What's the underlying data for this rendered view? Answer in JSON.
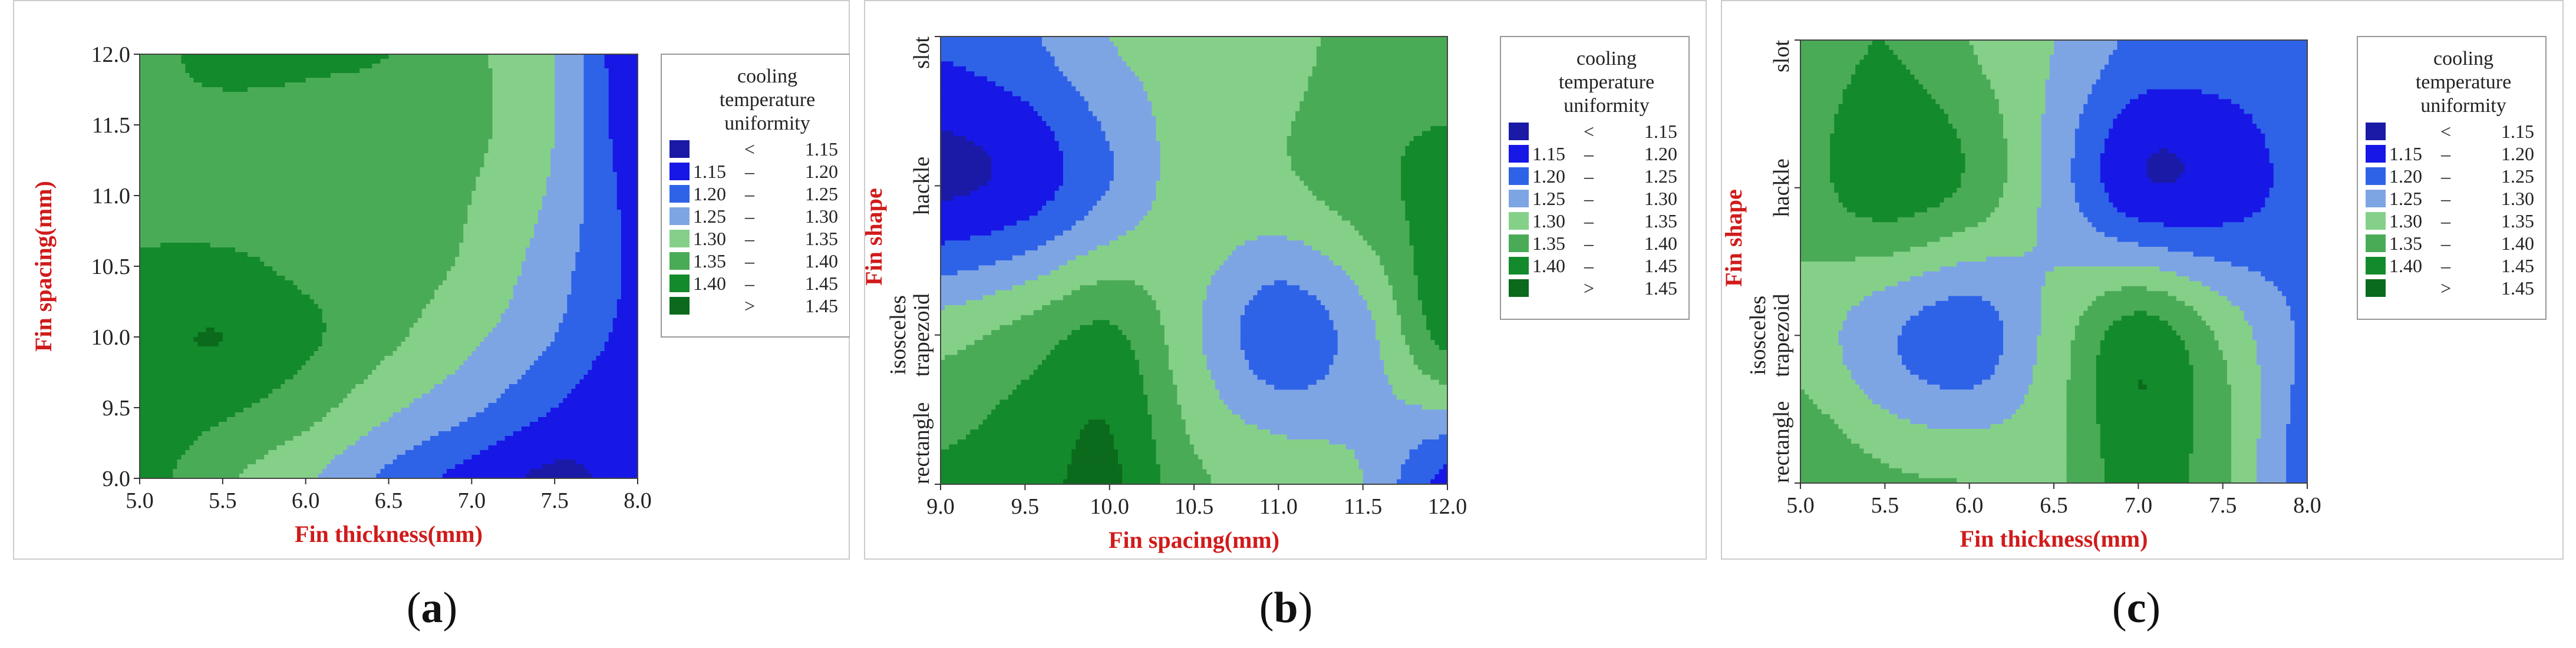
{
  "colors": {
    "levels": [
      "#1a1aa6",
      "#1717e6",
      "#2e63e8",
      "#7ea5e3",
      "#85d089",
      "#4aab57",
      "#138a2b",
      "#0b6a1c"
    ],
    "axis_label_color": "#d01b1b",
    "panel_border": "#cccccc"
  },
  "legend": {
    "title_lines": [
      "cooling",
      "temperature",
      "uniformity"
    ],
    "ranges": [
      {
        "lo": "<",
        "hi": "1.15"
      },
      {
        "lo": "1.15",
        "hi": "1.20"
      },
      {
        "lo": "1.20",
        "hi": "1.25"
      },
      {
        "lo": "1.25",
        "hi": "1.30"
      },
      {
        "lo": "1.30",
        "hi": "1.35"
      },
      {
        "lo": "1.35",
        "hi": "1.40"
      },
      {
        "lo": "1.40",
        "hi": "1.45"
      },
      {
        "lo": ">",
        "hi": "1.45"
      }
    ]
  },
  "chart_data": [
    {
      "type": "heatmap",
      "subtype": "filled-contour",
      "caption": "a",
      "xlabel": "Fin thickness(mm)",
      "ylabel": "Fin spacing(mm)",
      "xlim": [
        5.0,
        8.0
      ],
      "ylim": [
        9.0,
        12.0
      ],
      "x_ticks": [
        "5.0",
        "5.5",
        "6.0",
        "6.5",
        "7.0",
        "7.5",
        "8.0"
      ],
      "y_ticks": [
        "9.0",
        "9.5",
        "10.0",
        "10.5",
        "11.0",
        "11.5",
        "12.0"
      ],
      "legend_title": "cooling temperature uniformity",
      "legend_position": "right",
      "approx_grid": {
        "x": [
          5.0,
          5.5,
          6.0,
          6.5,
          7.0,
          7.5,
          8.0
        ],
        "y": [
          9.0,
          9.5,
          10.0,
          10.5,
          11.0,
          11.5,
          12.0
        ],
        "z": [
          [
            1.42,
            1.36,
            1.31,
            1.24,
            1.18,
            1.14,
            1.17
          ],
          [
            1.43,
            1.41,
            1.37,
            1.31,
            1.26,
            1.2,
            1.15
          ],
          [
            1.44,
            1.45,
            1.41,
            1.36,
            1.31,
            1.25,
            1.18
          ],
          [
            1.41,
            1.41,
            1.39,
            1.37,
            1.34,
            1.27,
            1.19
          ],
          [
            1.38,
            1.38,
            1.38,
            1.37,
            1.35,
            1.29,
            1.18
          ],
          [
            1.39,
            1.38,
            1.38,
            1.37,
            1.36,
            1.3,
            1.16
          ],
          [
            1.38,
            1.42,
            1.41,
            1.4,
            1.36,
            1.3,
            1.15
          ]
        ]
      }
    },
    {
      "type": "heatmap",
      "subtype": "filled-contour",
      "caption": "b",
      "xlabel": "Fin spacing(mm)",
      "ylabel": "Fin shape",
      "xlim": [
        9.0,
        12.0
      ],
      "ylim": [
        0,
        3
      ],
      "x_ticks": [
        "9.0",
        "9.5",
        "10.0",
        "10.5",
        "11.0",
        "11.5",
        "12.0"
      ],
      "y_categories": [
        "rectangle",
        "isosceles trapezoid",
        "hackle",
        "slot"
      ],
      "legend_title": "cooling temperature uniformity",
      "legend_position": "right",
      "approx_grid": {
        "x": [
          9.0,
          9.5,
          10.0,
          10.5,
          11.0,
          11.5,
          12.0
        ],
        "y": [
          0,
          1,
          2,
          3
        ],
        "z": [
          [
            1.41,
            1.43,
            1.46,
            1.36,
            1.34,
            1.3,
            1.18
          ],
          [
            1.33,
            1.37,
            1.41,
            1.31,
            1.22,
            1.28,
            1.42
          ],
          [
            1.14,
            1.17,
            1.25,
            1.33,
            1.34,
            1.38,
            1.42
          ],
          [
            1.21,
            1.24,
            1.3,
            1.32,
            1.33,
            1.37,
            1.37
          ]
        ]
      }
    },
    {
      "type": "heatmap",
      "subtype": "filled-contour",
      "caption": "c",
      "xlabel": "Fin thickness(mm)",
      "ylabel": "Fin shape",
      "xlim": [
        5.0,
        8.0
      ],
      "ylim": [
        0,
        3
      ],
      "x_ticks": [
        "5.0",
        "5.5",
        "6.0",
        "6.5",
        "7.0",
        "7.5",
        "8.0"
      ],
      "y_categories": [
        "rectangle",
        "isosceles trapezoid",
        "hackle",
        "slot"
      ],
      "legend_title": "cooling temperature uniformity",
      "legend_position": "right",
      "approx_grid": {
        "x": [
          5.0,
          5.5,
          6.0,
          6.5,
          7.0,
          7.5,
          8.0
        ],
        "y": [
          0,
          1,
          2,
          3
        ],
        "z": [
          [
            1.4,
            1.36,
            1.35,
            1.34,
            1.43,
            1.36,
            1.22
          ],
          [
            1.33,
            1.26,
            1.22,
            1.32,
            1.43,
            1.34,
            1.24
          ],
          [
            1.38,
            1.43,
            1.39,
            1.28,
            1.16,
            1.17,
            1.22
          ],
          [
            1.37,
            1.4,
            1.35,
            1.3,
            1.24,
            1.23,
            1.24
          ]
        ]
      }
    }
  ],
  "captions": [
    "a",
    "b",
    "c"
  ]
}
